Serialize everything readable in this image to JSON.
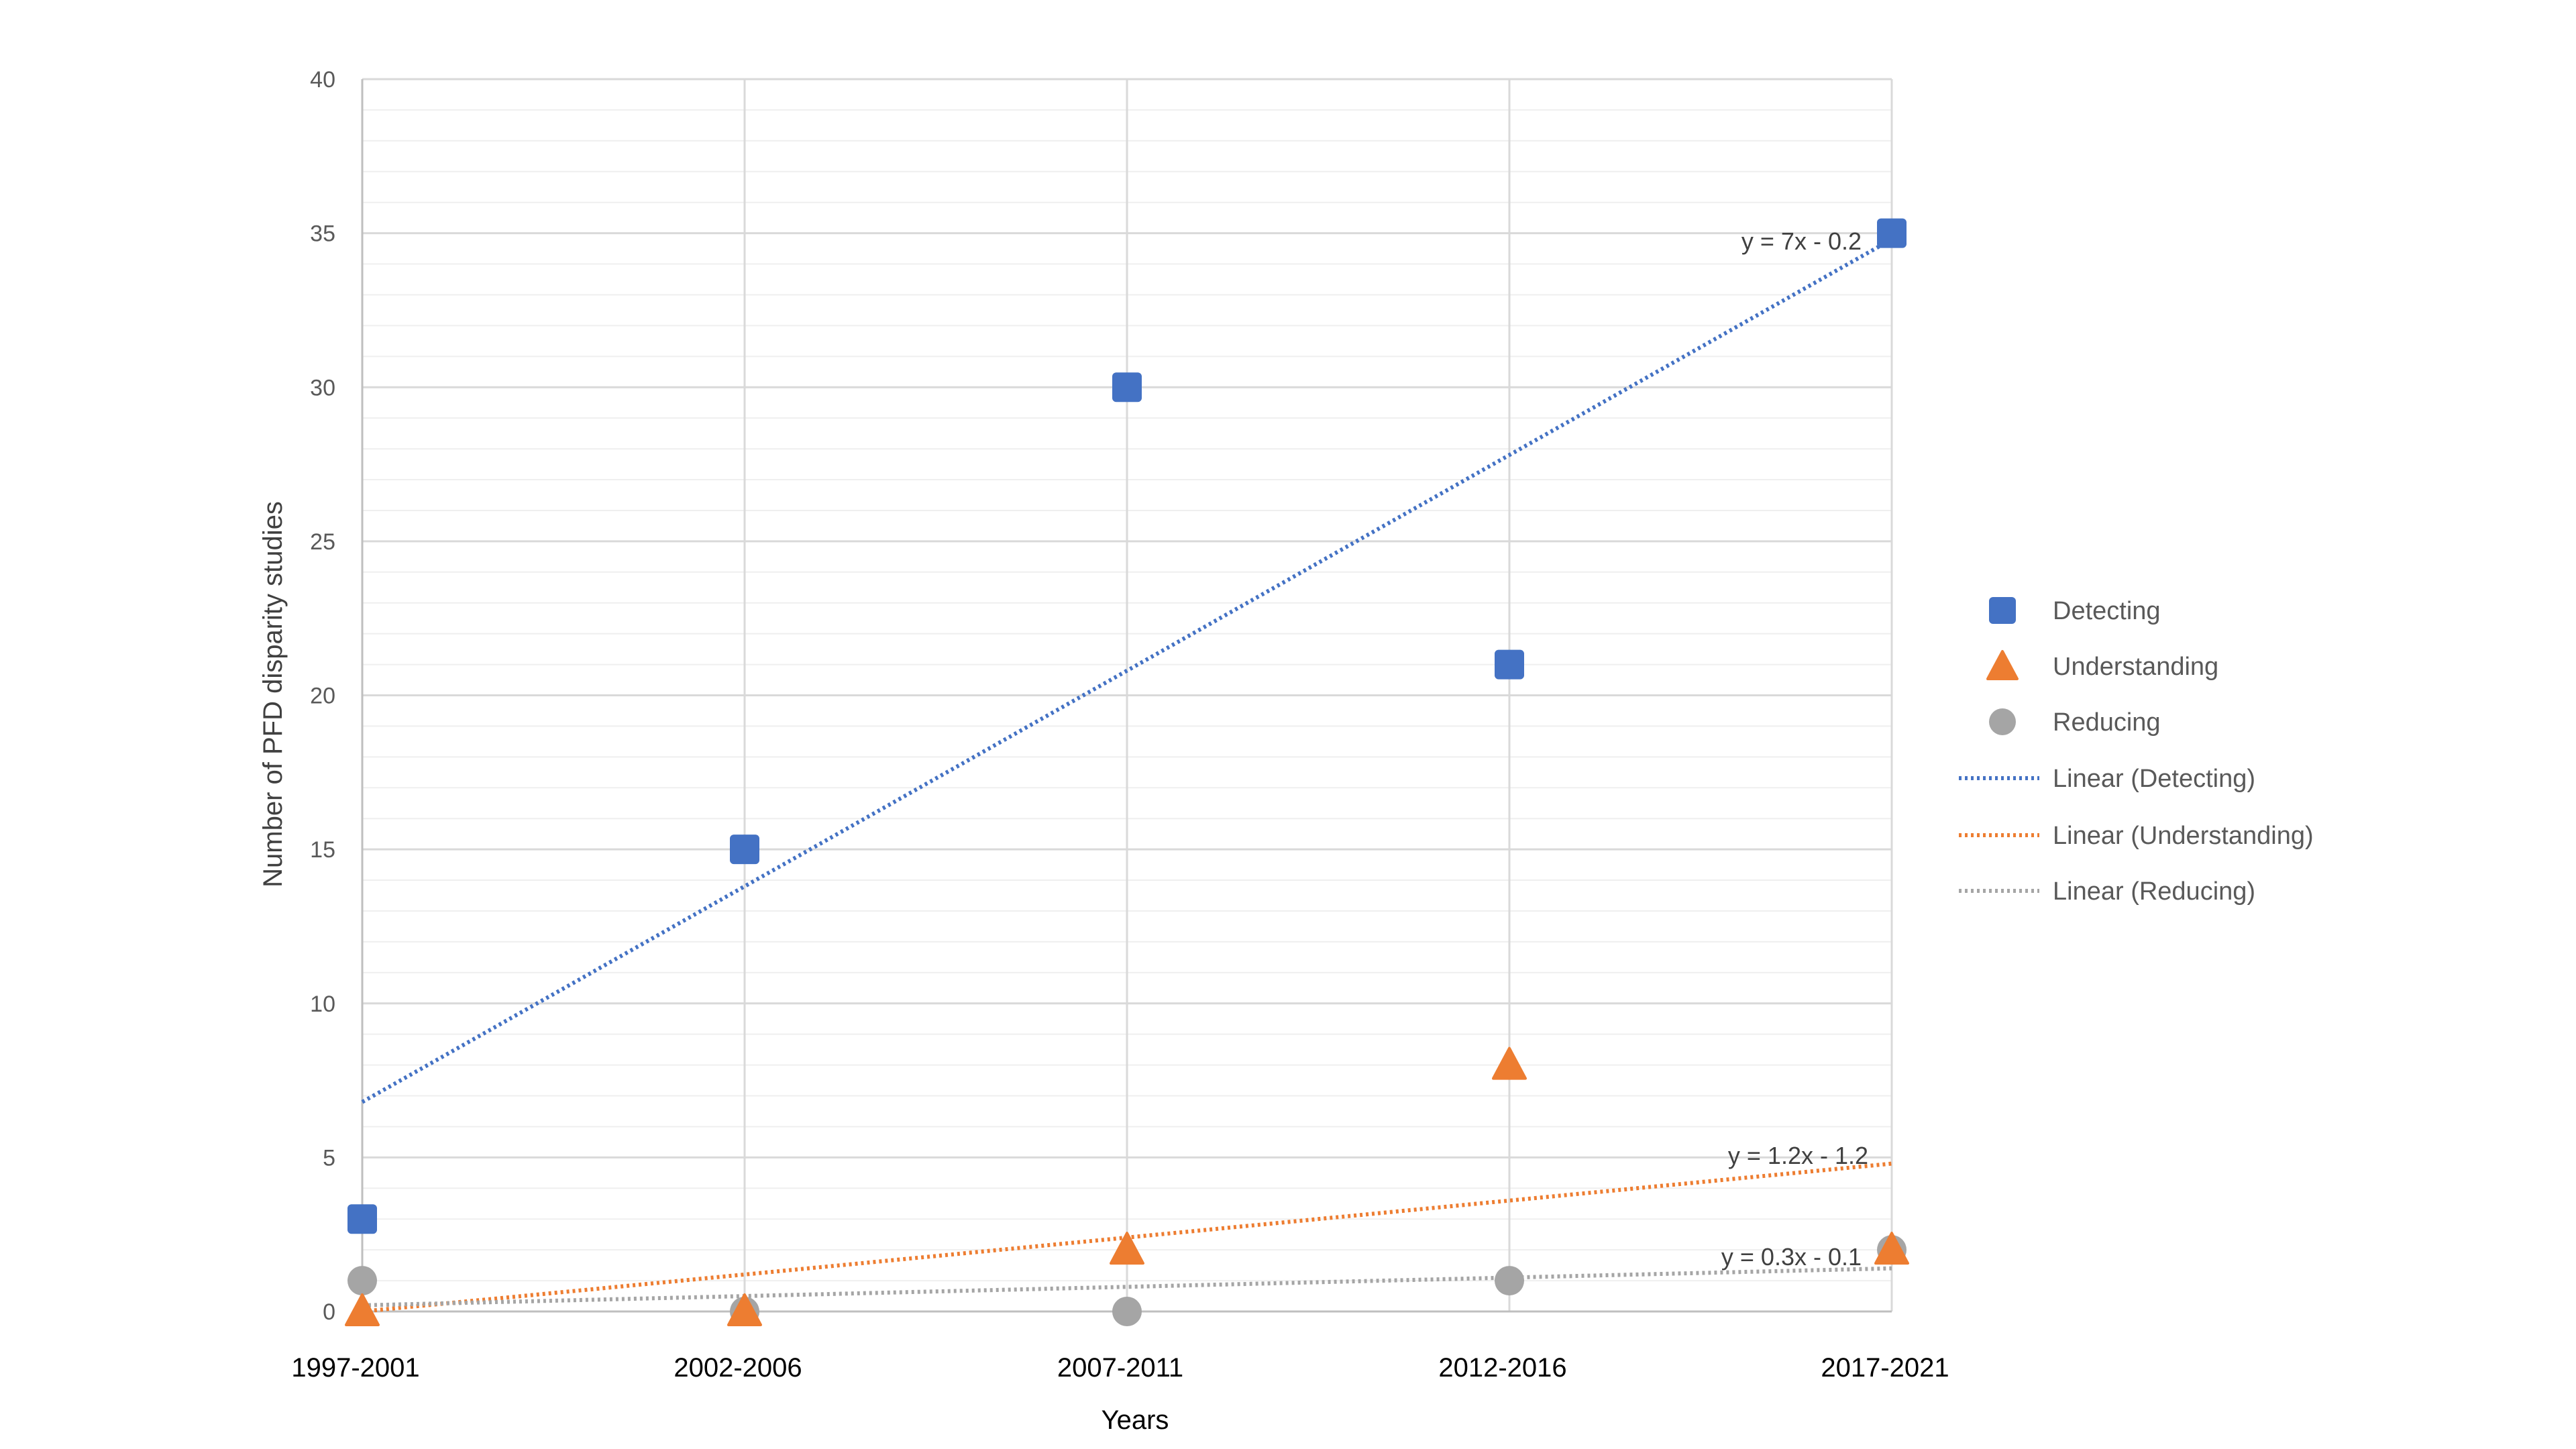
{
  "chart_data": {
    "type": "scatter",
    "categories": [
      "1997-2001",
      "2002-2006",
      "2007-2011",
      "2012-2016",
      "2017-2021"
    ],
    "xlabel": "Years",
    "ylabel": "Number of PFD disparity studies",
    "ylim": [
      0,
      40
    ],
    "y_major_ticks": [
      0,
      5,
      10,
      15,
      20,
      25,
      30,
      35,
      40
    ],
    "y_minor_step": 1,
    "grid": true,
    "legend_position": "right",
    "series": [
      {
        "name": "Detecting",
        "marker": "square",
        "color": "#4472C4",
        "values": [
          3,
          15,
          30,
          21,
          35
        ]
      },
      {
        "name": "Understanding",
        "marker": "triangle",
        "color": "#ED7D31",
        "values": [
          0,
          0,
          2,
          8,
          2
        ]
      },
      {
        "name": "Reducing",
        "marker": "circle",
        "color": "#A5A5A5",
        "values": [
          1,
          0,
          0,
          1,
          2
        ]
      }
    ],
    "trendlines": [
      {
        "name": "Linear (Detecting)",
        "color": "#4472C4",
        "slope": 7,
        "intercept": -0.2,
        "equation": "y = 7x - 0.2"
      },
      {
        "name": "Linear (Understanding)",
        "color": "#ED7D31",
        "slope": 1.2,
        "intercept": -1.2,
        "equation": "y = 1.2x - 1.2"
      },
      {
        "name": "Linear (Reducing)",
        "color": "#A5A5A5",
        "slope": 0.3,
        "intercept": -0.1,
        "equation": "y = 0.3x - 0.1"
      }
    ]
  }
}
